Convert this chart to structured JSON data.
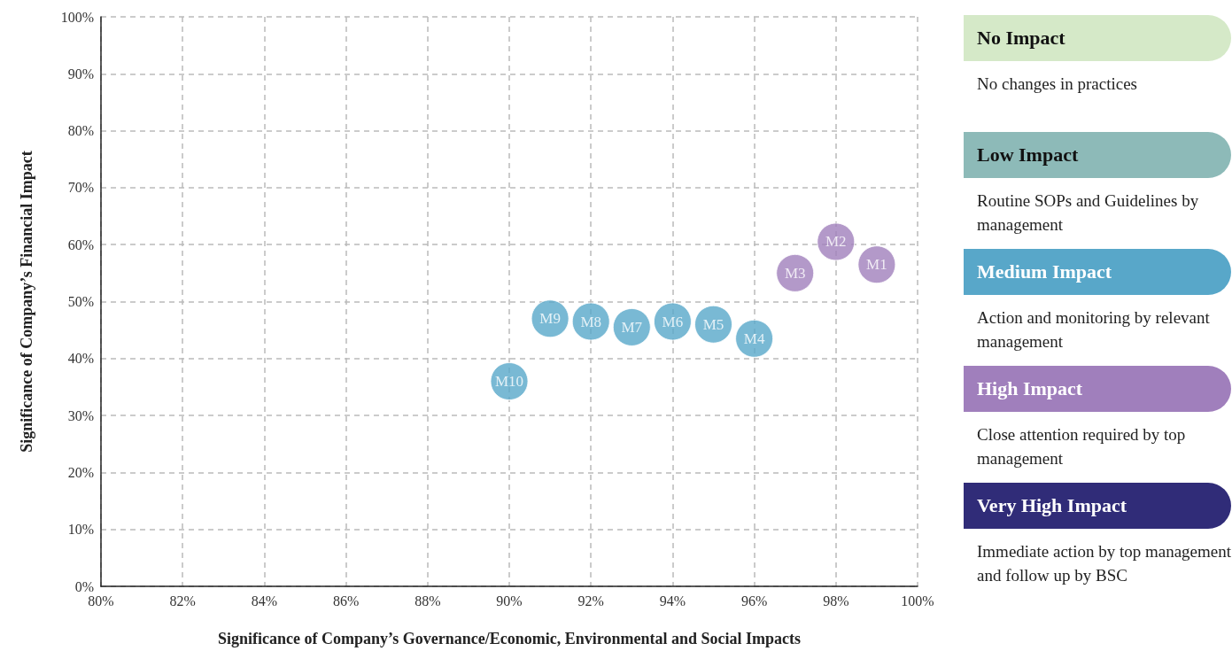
{
  "chart_data": [
    {
      "type": "scatter",
      "xlabel": "Significance of Company’s Governance/Economic, Environmental and Social Impacts",
      "ylabel": "Significance of Company’s Financial Impact",
      "xlim": [
        80,
        100
      ],
      "ylim": [
        0,
        100
      ],
      "xticks": [
        {
          "value": 80,
          "label": "80%"
        },
        {
          "value": 82,
          "label": "82%"
        },
        {
          "value": 84,
          "label": "84%"
        },
        {
          "value": 86,
          "label": "86%"
        },
        {
          "value": 88,
          "label": "88%"
        },
        {
          "value": 90,
          "label": "90%"
        },
        {
          "value": 92,
          "label": "92%"
        },
        {
          "value": 94,
          "label": "94%"
        },
        {
          "value": 96,
          "label": "96%"
        },
        {
          "value": 98,
          "label": "98%"
        },
        {
          "value": 100,
          "label": "100%"
        }
      ],
      "yticks": [
        {
          "value": 0,
          "label": "0%"
        },
        {
          "value": 10,
          "label": "10%"
        },
        {
          "value": 20,
          "label": "20%"
        },
        {
          "value": 30,
          "label": "30%"
        },
        {
          "value": 40,
          "label": "40%"
        },
        {
          "value": 50,
          "label": "50%"
        },
        {
          "value": 60,
          "label": "60%"
        },
        {
          "value": 70,
          "label": "70%"
        },
        {
          "value": 80,
          "label": "80%"
        },
        {
          "value": 90,
          "label": "90%"
        },
        {
          "value": 100,
          "label": "100%"
        }
      ],
      "grid": true,
      "marker": "circle",
      "series": [
        {
          "color": "#a07fbc",
          "x": [
            99,
            98,
            97
          ],
          "values": [
            56.5,
            60.5,
            55
          ],
          "value_labels": [
            "M1",
            "M2",
            "M3"
          ]
        },
        {
          "color": "#58a7c9",
          "x": [
            96,
            95,
            94,
            93,
            92,
            91,
            90
          ],
          "values": [
            43.5,
            46,
            46.5,
            45.5,
            46.5,
            47,
            36
          ],
          "value_labels": [
            "M4",
            "M5",
            "M6",
            "M7",
            "M8",
            "M9",
            "M10"
          ]
        }
      ]
    },
    {
      "type": "other",
      "categories": [
        "No Impact",
        "Low Impact",
        "Medium Impact",
        "High Impact",
        "Very High Impact"
      ],
      "colors": [
        "#d5e9c8",
        "#8dbab8",
        "#58a7c9",
        "#a07fbc",
        "#302c78"
      ],
      "annotations": [
        "No changes in practices",
        "Routine SOPs and Guidelines by management",
        "Action and monitoring by relevant management",
        "Close attention required by top management",
        "Immediate action by top management and follow up by BSC"
      ]
    }
  ]
}
